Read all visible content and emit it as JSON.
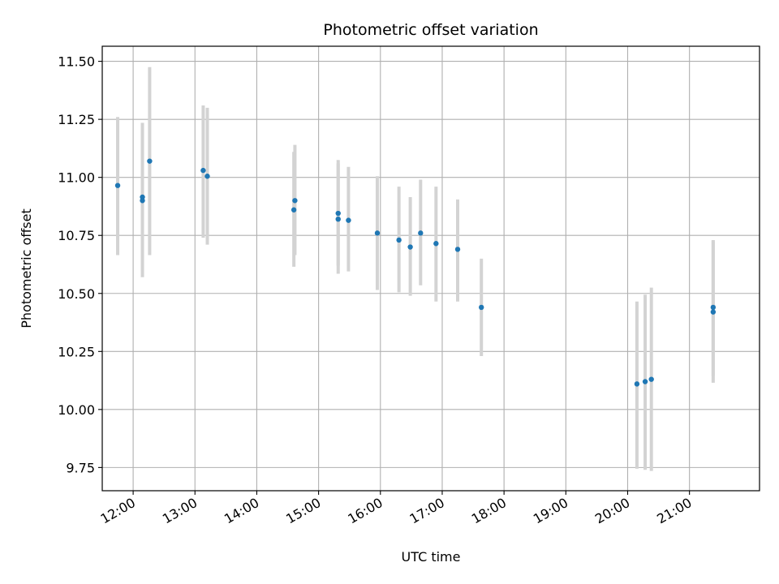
{
  "chart_data": {
    "type": "scatter",
    "title": "Photometric offset variation",
    "xlabel": "UTC time",
    "ylabel": "Photometric offset",
    "xlim": [
      "11:30",
      "22:08"
    ],
    "ylim": [
      9.65,
      11.565
    ],
    "x_ticks": [
      "12:00",
      "13:00",
      "14:00",
      "15:00",
      "16:00",
      "17:00",
      "18:00",
      "19:00",
      "20:00",
      "21:00"
    ],
    "y_ticks": [
      "9.75",
      "10.00",
      "10.25",
      "10.50",
      "10.75",
      "11.00",
      "11.25",
      "11.50"
    ],
    "grid": true,
    "point_color": "#1f77b4",
    "errorbar_color": "#d3d3d3",
    "points": [
      {
        "x": "11:45",
        "y": 10.965,
        "ylo": 10.665,
        "yhi": 11.26
      },
      {
        "x": "12:09",
        "y": 10.915,
        "ylo": 10.57,
        "yhi": 11.235
      },
      {
        "x": "12:09",
        "y": 10.9,
        "ylo": 10.6,
        "yhi": 11.23
      },
      {
        "x": "12:16",
        "y": 11.07,
        "ylo": 10.665,
        "yhi": 11.475
      },
      {
        "x": "13:08",
        "y": 11.03,
        "ylo": 10.74,
        "yhi": 11.31
      },
      {
        "x": "13:12",
        "y": 11.005,
        "ylo": 10.71,
        "yhi": 11.3
      },
      {
        "x": "14:36",
        "y": 10.86,
        "ylo": 10.615,
        "yhi": 11.11
      },
      {
        "x": "14:37",
        "y": 10.9,
        "ylo": 10.665,
        "yhi": 11.14
      },
      {
        "x": "15:19",
        "y": 10.845,
        "ylo": 10.62,
        "yhi": 11.075
      },
      {
        "x": "15:19",
        "y": 10.82,
        "ylo": 10.585,
        "yhi": 11.06
      },
      {
        "x": "15:29",
        "y": 10.815,
        "ylo": 10.595,
        "yhi": 11.045
      },
      {
        "x": "15:57",
        "y": 10.76,
        "ylo": 10.515,
        "yhi": 11.005
      },
      {
        "x": "16:18",
        "y": 10.73,
        "ylo": 10.505,
        "yhi": 10.96
      },
      {
        "x": "16:29",
        "y": 10.7,
        "ylo": 10.49,
        "yhi": 10.915
      },
      {
        "x": "16:39",
        "y": 10.76,
        "ylo": 10.535,
        "yhi": 10.99
      },
      {
        "x": "16:54",
        "y": 10.715,
        "ylo": 10.465,
        "yhi": 10.96
      },
      {
        "x": "17:15",
        "y": 10.69,
        "ylo": 10.465,
        "yhi": 10.905
      },
      {
        "x": "17:38",
        "y": 10.44,
        "ylo": 10.23,
        "yhi": 10.65
      },
      {
        "x": "20:09",
        "y": 10.11,
        "ylo": 9.745,
        "yhi": 10.465
      },
      {
        "x": "20:17",
        "y": 10.12,
        "ylo": 9.74,
        "yhi": 10.495
      },
      {
        "x": "20:23",
        "y": 10.13,
        "ylo": 9.735,
        "yhi": 10.525
      },
      {
        "x": "21:23",
        "y": 10.44,
        "ylo": 10.145,
        "yhi": 10.73
      },
      {
        "x": "21:23",
        "y": 10.42,
        "ylo": 10.115,
        "yhi": 10.725
      }
    ]
  }
}
